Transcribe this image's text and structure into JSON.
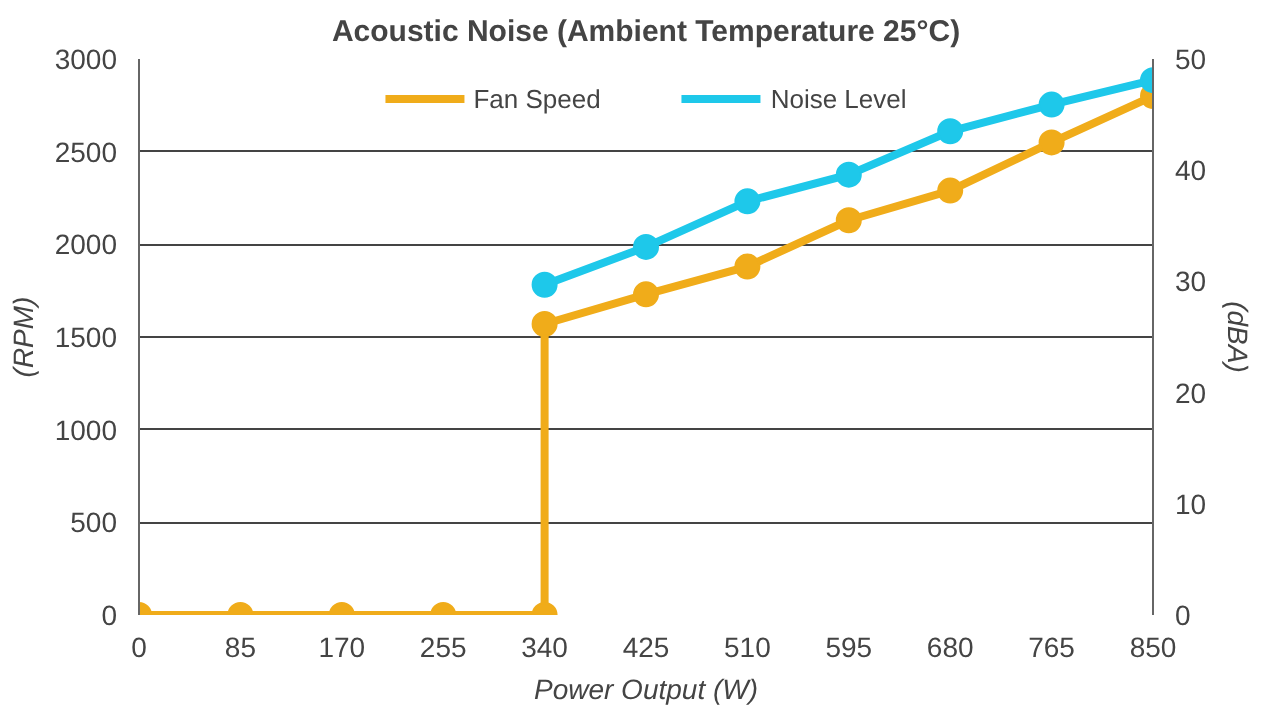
{
  "chart_data": {
    "type": "line",
    "title": "Acoustic Noise (Ambient Temperature 25°C)",
    "xlabel": "Power Output (W)",
    "ylabel": "(RPM)",
    "y2label": "(dBA)",
    "series": [
      {
        "name": "Fan Speed",
        "color": "#f0ac1a",
        "x": [
          0,
          85,
          170,
          255,
          340,
          340,
          425,
          510,
          595,
          680,
          765,
          850
        ],
        "values": [
          0,
          0,
          0,
          0,
          0,
          1570,
          1730,
          1880,
          2130,
          2290,
          2550,
          2800
        ]
      },
      {
        "name": "Noise Level",
        "color": "#1ec8ea",
        "axis": "y2",
        "x": [
          340,
          425,
          510,
          595,
          680,
          765,
          850
        ],
        "values": [
          29.7,
          33.1,
          37.2,
          39.6,
          43.5,
          45.9,
          48.1
        ]
      }
    ],
    "xlim": [
      0,
      850
    ],
    "xticks": [
      0,
      85,
      170,
      255,
      340,
      425,
      510,
      595,
      680,
      765,
      850
    ],
    "ylim": [
      0,
      3000
    ],
    "yticks": [
      0,
      500,
      1000,
      1500,
      2000,
      2500,
      3000
    ],
    "y2lim": [
      0,
      50
    ],
    "y2ticks": [
      0,
      10,
      20,
      30,
      40,
      50
    ],
    "grid": "y",
    "legend": "top",
    "marker": "circle",
    "line_style": "solid"
  }
}
